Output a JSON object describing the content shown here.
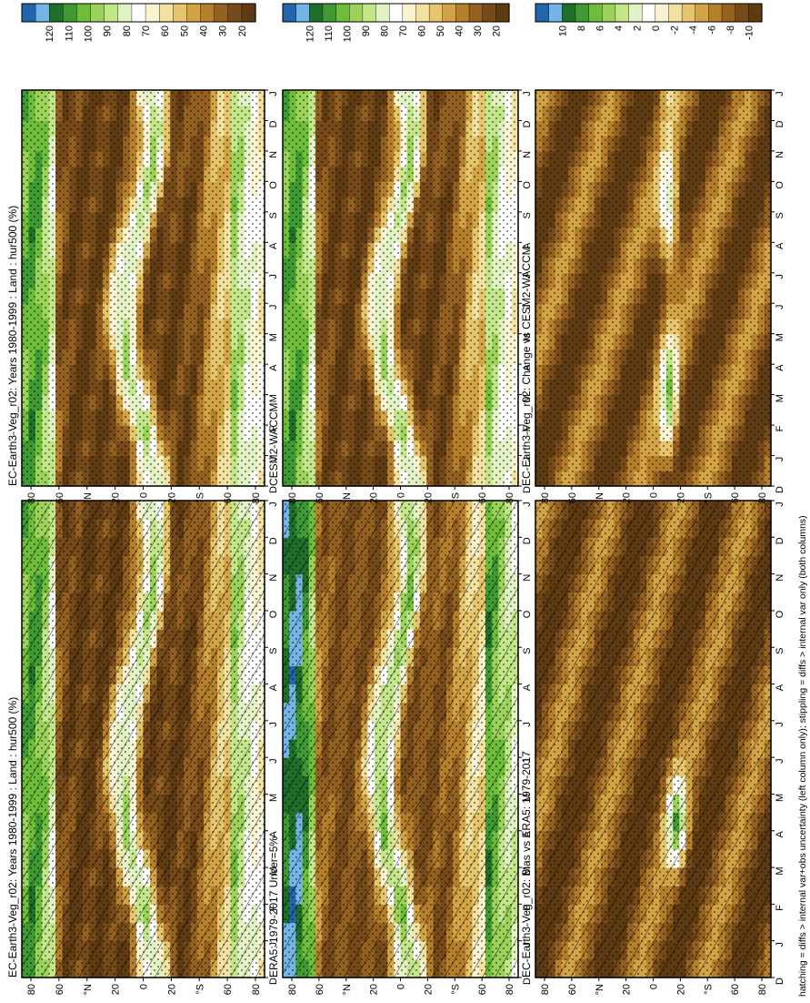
{
  "figure": {
    "footnote": "hatching = diffs > internal var+obs uncertainty (left column only); stippling = diffs > internal var only (both columns)"
  },
  "colors": {
    "abs_scale": [
      "#2166ac",
      "#74b5e6",
      "#1f6e2a",
      "#3f9a34",
      "#6fbe3b",
      "#9bd35a",
      "#c3e68b",
      "#e2f2c4",
      "#ffffff",
      "#faf3d2",
      "#f2e2a2",
      "#e6c66c",
      "#d2a446",
      "#b57f2b",
      "#946120",
      "#774b19",
      "#5f3b13"
    ],
    "diff_scale": [
      "#2166ac",
      "#74b5e6",
      "#1f6e2a",
      "#3f9a34",
      "#6fbe3b",
      "#9bd35a",
      "#c3e68b",
      "#e2f2c4",
      "#ffffff",
      "#faf3d2",
      "#f2e2a2",
      "#e6c66c",
      "#d2a446",
      "#b57f2b",
      "#946120",
      "#774b19",
      "#5f3b13"
    ]
  },
  "chart_data": [
    {
      "type": "heatmap",
      "title": "EC-Earth3-Veg_r02: Years 1980-1999 : Land : hur500 (%)",
      "x_ticks": [
        "D",
        "J",
        "F",
        "M",
        "A",
        "M",
        "J",
        "J",
        "A",
        "S",
        "O",
        "N",
        "D",
        "J"
      ],
      "y_ticks": [
        "80",
        "60",
        "°N",
        "20",
        "0",
        "20",
        "°S",
        "60",
        "80"
      ],
      "colorbar_labels": [
        "120",
        "110",
        "100",
        "90",
        "80",
        "70",
        "60",
        "50",
        "40",
        "30",
        "20"
      ],
      "units": "%",
      "zlim": [
        15,
        125
      ],
      "overlays": [
        "hatching",
        "stippling"
      ]
    },
    {
      "type": "heatmap",
      "title": "EC-Earth3-Veg_r02: Years 1980-1999 : Land : hur500 (%)",
      "x_ticks": [
        "D",
        "J",
        "F",
        "M",
        "A",
        "M",
        "J",
        "J",
        "A",
        "S",
        "O",
        "N",
        "D",
        "J"
      ],
      "y_ticks": [
        "80",
        "60",
        "°N",
        "20",
        "0",
        "20",
        "°S",
        "60",
        "80"
      ],
      "colorbar_labels": [
        "120",
        "110",
        "100",
        "90",
        "80",
        "70",
        "60",
        "50",
        "40",
        "30",
        "20"
      ],
      "units": "%",
      "zlim": [
        15,
        125
      ],
      "overlays": [
        "stippling"
      ]
    },
    {
      "type": "heatmap",
      "title": "ERA5: 1979-2017 Uncer=5%",
      "x_ticks": [
        "D",
        "J",
        "F",
        "M",
        "A",
        "M",
        "J",
        "J",
        "A",
        "S",
        "O",
        "N",
        "D",
        "J"
      ],
      "y_ticks": [
        "80",
        "60",
        "°N",
        "20",
        "0",
        "20",
        "°S",
        "60",
        "80"
      ],
      "colorbar_labels": [
        "120",
        "110",
        "100",
        "90",
        "80",
        "70",
        "60",
        "50",
        "40",
        "30",
        "20"
      ],
      "units": "%",
      "zlim": [
        15,
        125
      ],
      "overlays": [
        "hatching",
        "stippling"
      ]
    },
    {
      "type": "heatmap",
      "title": "CESM2-WACCM",
      "x_ticks": [
        "D",
        "J",
        "F",
        "M",
        "A",
        "M",
        "J",
        "J",
        "A",
        "S",
        "O",
        "N",
        "D",
        "J"
      ],
      "y_ticks": [
        "80",
        "60",
        "°N",
        "20",
        "0",
        "20",
        "°S",
        "60",
        "80"
      ],
      "colorbar_labels": [
        "120",
        "110",
        "100",
        "90",
        "80",
        "70",
        "60",
        "50",
        "40",
        "30",
        "20"
      ],
      "units": "%",
      "zlim": [
        15,
        125
      ],
      "overlays": [
        "stippling"
      ]
    },
    {
      "type": "heatmap",
      "title": "EC-Earth3-Veg_r02: Bias vs ERA5: 1979-2017",
      "x_ticks": [
        "D",
        "J",
        "F",
        "M",
        "A",
        "M",
        "J",
        "J",
        "A",
        "S",
        "O",
        "N",
        "D",
        "J"
      ],
      "y_ticks": [
        "80",
        "60",
        "°N",
        "20",
        "0",
        "20",
        "°S",
        "60",
        "80"
      ],
      "colorbar_labels": [
        "10",
        "8",
        "6",
        "4",
        "2",
        "0",
        "-2",
        "-4",
        "-6",
        "-8",
        "-10"
      ],
      "units": "%",
      "zlim": [
        -12,
        12
      ],
      "overlays": [
        "hatching",
        "stippling"
      ]
    },
    {
      "type": "heatmap",
      "title": "EC-Earth3-Veg_r02: Change vs CESM2-WACCM",
      "x_ticks": [
        "D",
        "J",
        "F",
        "M",
        "A",
        "M",
        "J",
        "J",
        "A",
        "S",
        "O",
        "N",
        "D",
        "J"
      ],
      "y_ticks": [
        "80",
        "60",
        "°N",
        "20",
        "0",
        "20",
        "°S",
        "60",
        "80"
      ],
      "colorbar_labels": [
        "10",
        "8",
        "6",
        "4",
        "2",
        "0",
        "-2",
        "-4",
        "-6",
        "-8",
        "-10"
      ],
      "units": "%",
      "zlim": [
        -12,
        12
      ],
      "overlays": [
        "stippling"
      ]
    }
  ]
}
